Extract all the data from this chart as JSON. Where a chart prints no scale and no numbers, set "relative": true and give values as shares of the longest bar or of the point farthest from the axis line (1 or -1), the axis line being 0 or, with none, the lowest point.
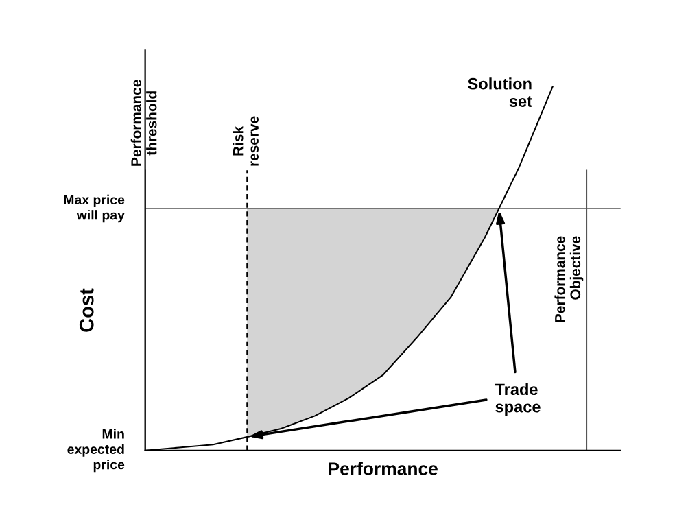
{
  "chart_data": {
    "type": "line",
    "relative": true,
    "xlabel": "Performance",
    "ylabel": "Cost",
    "categories": [
      null,
      null,
      null,
      null,
      null,
      null,
      null,
      null,
      null,
      null,
      null,
      null,
      null,
      null,
      null
    ],
    "series": [
      {
        "color": "#000000",
        "values": [
          0,
          0.008,
          0.016,
          0.037,
          0.06,
          0.095,
          0.144,
          0.207,
          0.31,
          0.421,
          0.585,
          0.776,
          1,
          null,
          null
        ]
      }
    ],
    "ref_lines": [
      {
        "axis": "y",
        "value": 0.665,
        "label": "Max price\nwill pay",
        "color": "#555555",
        "line_style": "solid"
      },
      {
        "axis": "y",
        "value": 0,
        "label": "Min\nexpected\nprice",
        "color": "#000000",
        "line_style": "solid"
      }
    ],
    "annotations": [
      "Performance\nthreshold",
      "Risk\nreserve",
      "Performance\nObjective",
      "Solution\nset",
      "Trade\nspace"
    ]
  }
}
